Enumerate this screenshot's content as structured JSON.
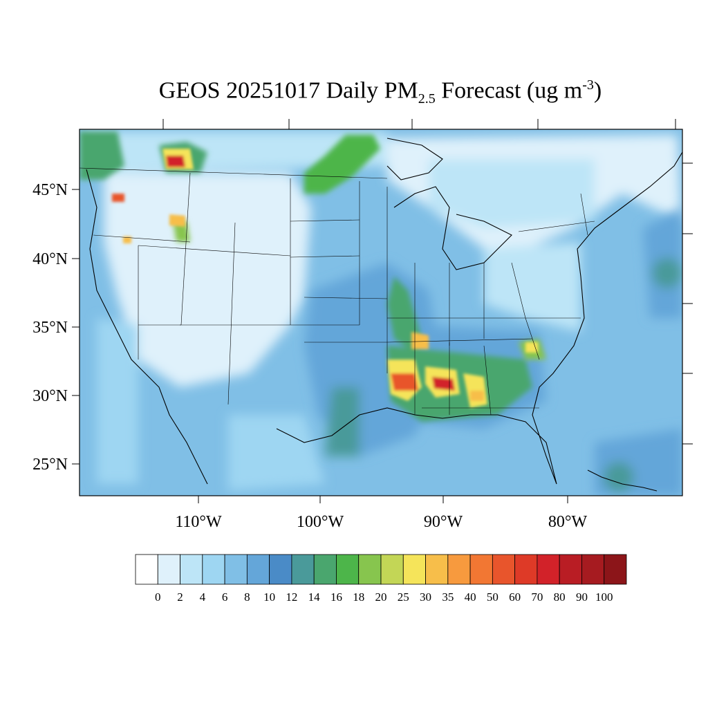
{
  "title": {
    "prefix": "GEOS 20251017 Daily PM",
    "subscript": "2.5",
    "middle": " Forecast (ug m",
    "superscript": "-3",
    "suffix": ")"
  },
  "lat_labels": [
    "45°N",
    "40°N",
    "35°N",
    "30°N",
    "25°N"
  ],
  "lat_values": [
    45,
    40,
    35,
    30,
    25
  ],
  "lon_labels": [
    "110°W",
    "100°W",
    "90°W",
    "80°W"
  ],
  "lon_values": [
    -110,
    -100,
    -90,
    -80
  ],
  "colorbar": {
    "levels": [
      "0",
      "2",
      "4",
      "6",
      "8",
      "10",
      "12",
      "14",
      "16",
      "18",
      "20",
      "25",
      "30",
      "35",
      "40",
      "50",
      "60",
      "70",
      "80",
      "90",
      "100"
    ],
    "colors": [
      "#ffffff",
      "#dff1fb",
      "#bde5f7",
      "#9ed6f2",
      "#80bfe6",
      "#64a6d9",
      "#4a8bc7",
      "#4a9a9a",
      "#4aa66e",
      "#4db54a",
      "#87c54e",
      "#c3d656",
      "#f5e45a",
      "#f7be4a",
      "#f79a3e",
      "#f27733",
      "#e8552c",
      "#de3a27",
      "#d22229",
      "#b91d24",
      "#a61b20",
      "#8c1519"
    ]
  },
  "colors": {
    "background_field": "#80bfe6",
    "low": "#dff1fb",
    "moderate": "#9ed6f2",
    "elevated": "#64a6d9",
    "green": "#4db54a",
    "yellow": "#f5e45a",
    "red": "#de3a27",
    "darkred": "#a61b20"
  }
}
